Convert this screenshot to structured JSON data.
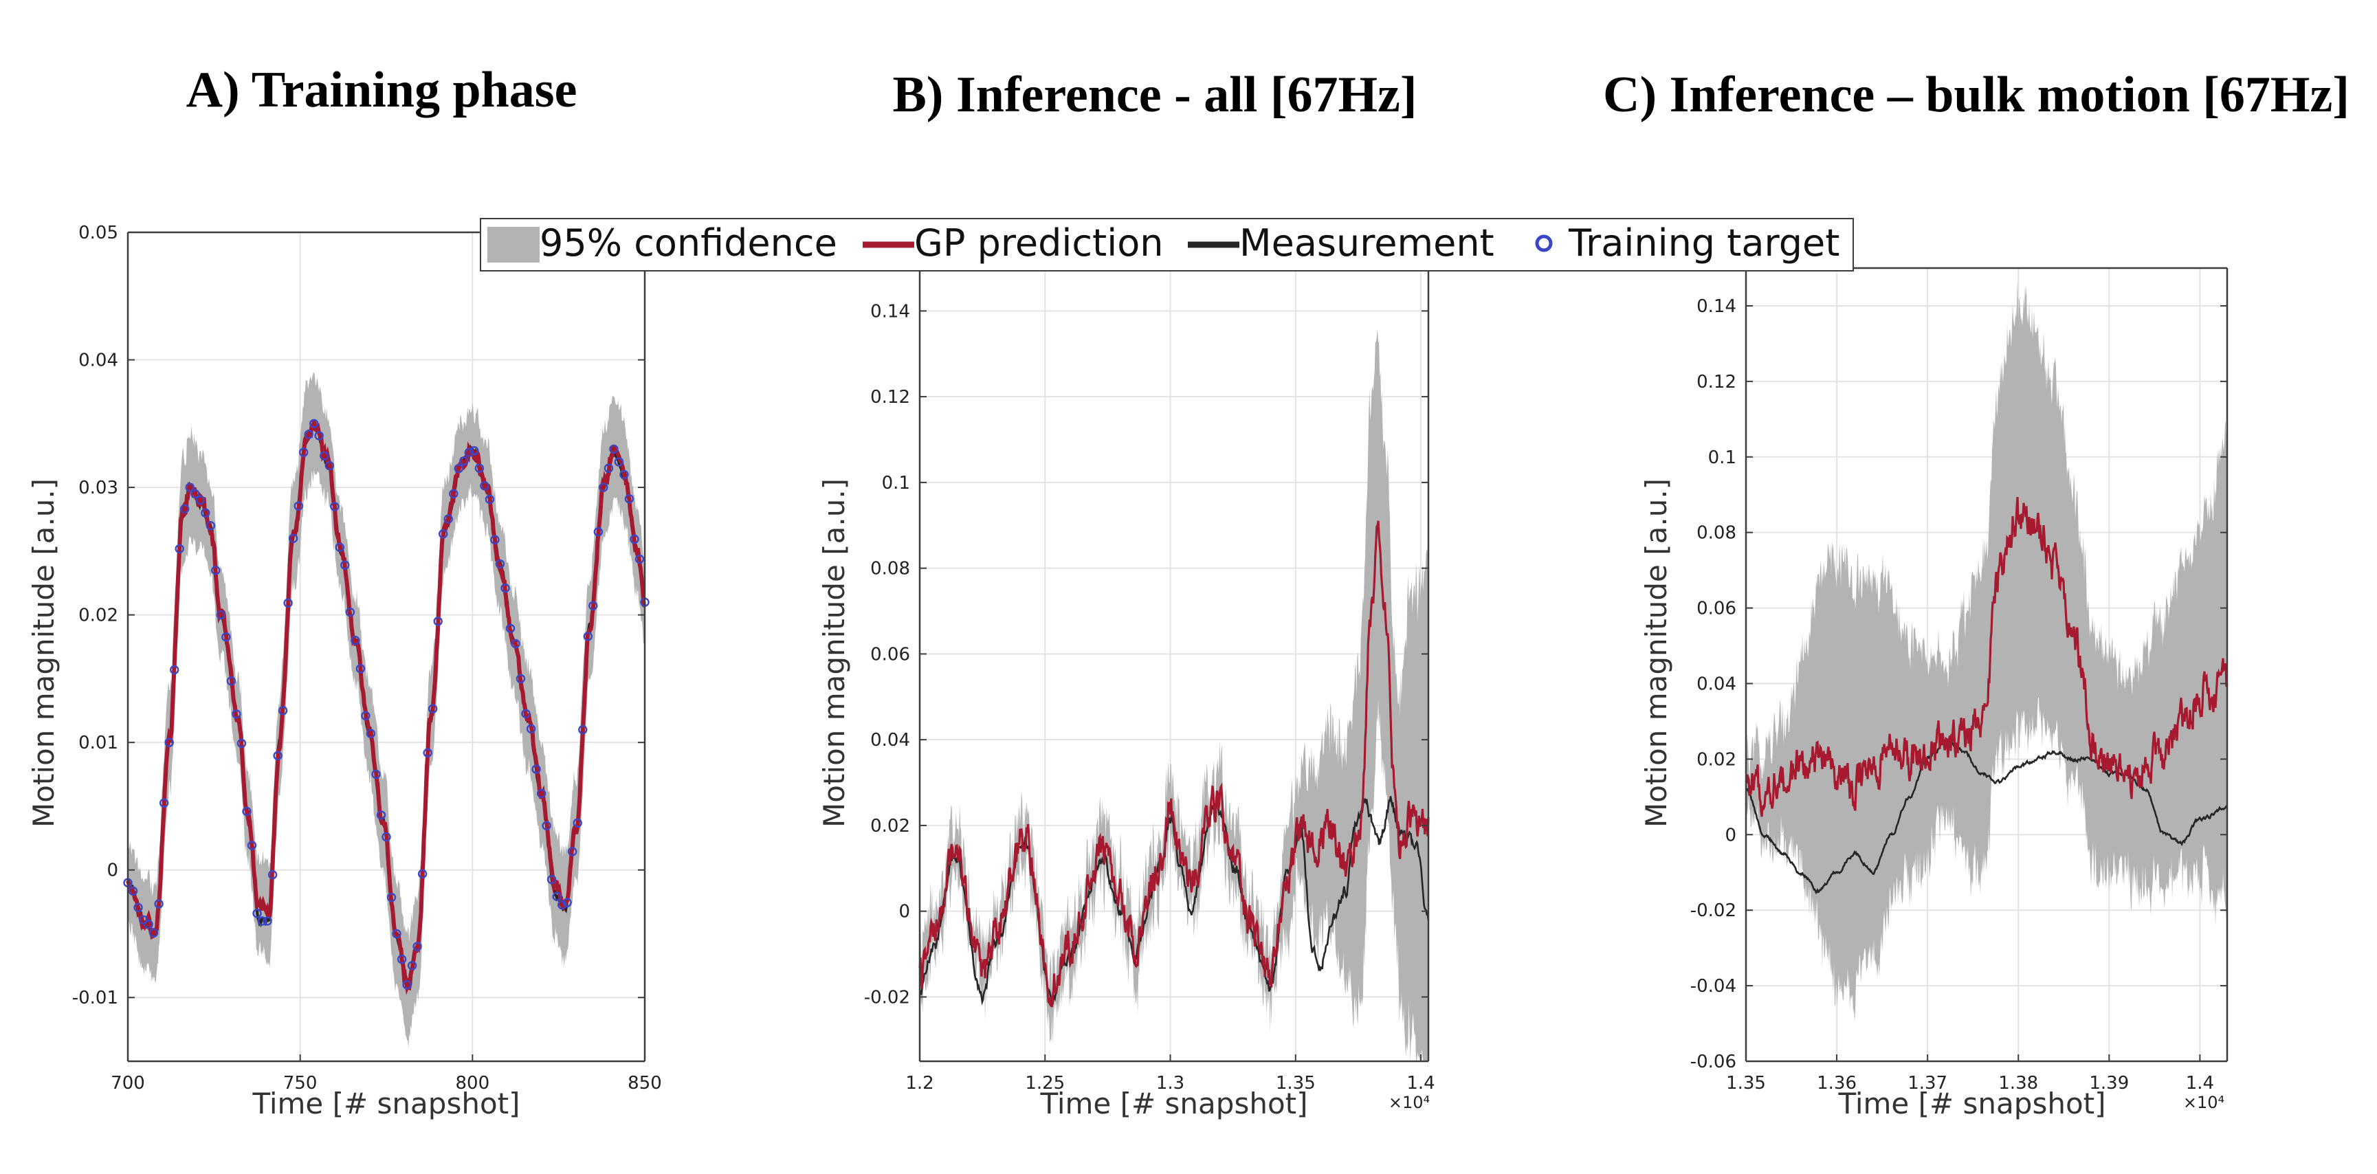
{
  "colors": {
    "confidence": "#b3b3b3",
    "prediction": "#a6192e",
    "measurement": "#262626",
    "target": "#3a45c8",
    "grid": "#e3e3e3",
    "axis": "#3c3c3c"
  },
  "legend": {
    "entries": [
      {
        "key": "confidence",
        "label": "95% confidence"
      },
      {
        "key": "prediction",
        "label": "GP prediction"
      },
      {
        "key": "measurement",
        "label": "Measurement"
      },
      {
        "key": "target",
        "label": "Training target"
      }
    ]
  },
  "chart_data": [
    {
      "id": "A",
      "type": "line",
      "title": "A) Training phase",
      "xlabel": "Time [# snapshot]",
      "ylabel": "Motion magnitude [a.u.]",
      "xlim": [
        700,
        850
      ],
      "ylim": [
        -0.015,
        0.05
      ],
      "xticks": [
        700,
        750,
        800,
        850
      ],
      "xtick_labels": [
        "700",
        "750",
        "800",
        "850"
      ],
      "yticks": [
        -0.01,
        0,
        0.01,
        0.02,
        0.03,
        0.04,
        0.05
      ],
      "ytick_labels": [
        "-0.01",
        "0",
        "0.01",
        "0.02",
        "0.03",
        "0.04",
        "0.05"
      ],
      "exponent_label": "",
      "anchors": {
        "prediction": [
          [
            700,
            -0.001
          ],
          [
            705,
            -0.004
          ],
          [
            708,
            -0.005
          ],
          [
            712,
            0.01
          ],
          [
            716,
            0.028
          ],
          [
            718,
            0.03
          ],
          [
            721,
            0.029
          ],
          [
            724,
            0.027
          ],
          [
            727,
            0.02
          ],
          [
            732,
            0.012
          ],
          [
            735,
            0.004
          ],
          [
            738,
            -0.003
          ],
          [
            741,
            -0.003
          ],
          [
            744,
            0.01
          ],
          [
            748,
            0.026
          ],
          [
            752,
            0.034
          ],
          [
            754,
            0.035
          ],
          [
            758,
            0.032
          ],
          [
            762,
            0.025
          ],
          [
            766,
            0.018
          ],
          [
            770,
            0.011
          ],
          [
            774,
            0.004
          ],
          [
            778,
            -0.005
          ],
          [
            781,
            -0.009
          ],
          [
            784,
            -0.006
          ],
          [
            788,
            0.012
          ],
          [
            792,
            0.027
          ],
          [
            797,
            0.032
          ],
          [
            800,
            0.033
          ],
          [
            804,
            0.03
          ],
          [
            808,
            0.024
          ],
          [
            812,
            0.018
          ],
          [
            816,
            0.012
          ],
          [
            820,
            0.006
          ],
          [
            824,
            -0.001
          ],
          [
            827,
            -0.003
          ],
          [
            830,
            0.003
          ],
          [
            834,
            0.019
          ],
          [
            838,
            0.03
          ],
          [
            841,
            0.033
          ],
          [
            844,
            0.031
          ],
          [
            848,
            0.025
          ],
          [
            850,
            0.021
          ]
        ],
        "measurement": [
          [
            700,
            -0.001
          ],
          [
            705,
            -0.004
          ],
          [
            708,
            -0.005
          ],
          [
            712,
            0.01
          ],
          [
            716,
            0.028
          ],
          [
            718,
            0.03
          ],
          [
            721,
            0.029
          ],
          [
            724,
            0.027
          ],
          [
            727,
            0.02
          ],
          [
            732,
            0.012
          ],
          [
            735,
            0.004
          ],
          [
            738,
            -0.004
          ],
          [
            741,
            -0.004
          ],
          [
            744,
            0.01
          ],
          [
            748,
            0.026
          ],
          [
            752,
            0.034
          ],
          [
            754,
            0.035
          ],
          [
            758,
            0.032
          ],
          [
            762,
            0.025
          ],
          [
            766,
            0.018
          ],
          [
            770,
            0.011
          ],
          [
            774,
            0.004
          ],
          [
            778,
            -0.005
          ],
          [
            781,
            -0.009
          ],
          [
            784,
            -0.006
          ],
          [
            788,
            0.012
          ],
          [
            792,
            0.027
          ],
          [
            797,
            0.032
          ],
          [
            800,
            0.033
          ],
          [
            804,
            0.03
          ],
          [
            808,
            0.024
          ],
          [
            812,
            0.018
          ],
          [
            816,
            0.012
          ],
          [
            820,
            0.006
          ],
          [
            824,
            -0.002
          ],
          [
            827,
            -0.003
          ],
          [
            830,
            0.003
          ],
          [
            834,
            0.019
          ],
          [
            838,
            0.03
          ],
          [
            841,
            0.033
          ],
          [
            844,
            0.031
          ],
          [
            848,
            0.025
          ],
          [
            850,
            0.021
          ]
        ],
        "conf_half": [
          [
            700,
            0.003
          ],
          [
            715,
            0.004
          ],
          [
            730,
            0.003
          ],
          [
            750,
            0.004
          ],
          [
            760,
            0.003
          ],
          [
            780,
            0.004
          ],
          [
            800,
            0.003
          ],
          [
            820,
            0.004
          ],
          [
            840,
            0.004
          ],
          [
            850,
            0.003
          ]
        ],
        "pred_noise": 0.0004,
        "meas_noise": 0.0002,
        "conf_noise": 0.0012,
        "targets": "measurement"
      }
    },
    {
      "id": "B",
      "type": "line",
      "title": "B) Inference - all [67Hz]",
      "xlabel": "Time [# snapshot]",
      "ylabel": "Motion magnitude [a.u.]",
      "xlim": [
        12000,
        14030
      ],
      "ylim": [
        -0.035,
        0.15
      ],
      "xticks": [
        12000,
        12500,
        13000,
        13500,
        14000
      ],
      "xtick_labels": [
        "1.2",
        "1.25",
        "1.3",
        "1.35",
        "1.4"
      ],
      "yticks": [
        -0.02,
        0,
        0.02,
        0.04,
        0.06,
        0.08,
        0.1,
        0.12,
        0.14
      ],
      "ytick_labels": [
        "-0.02",
        "0",
        "0.02",
        "0.04",
        "0.06",
        "0.08",
        "0.1",
        "0.12",
        "0.14"
      ],
      "exponent_label": "×10⁴",
      "anchors": {
        "prediction": [
          [
            12000,
            -0.015
          ],
          [
            12060,
            -0.005
          ],
          [
            12140,
            0.015
          ],
          [
            12250,
            -0.015
          ],
          [
            12300,
            -0.005
          ],
          [
            12420,
            0.017
          ],
          [
            12530,
            -0.018
          ],
          [
            12580,
            -0.01
          ],
          [
            12730,
            0.015
          ],
          [
            12800,
            0.002
          ],
          [
            12860,
            -0.008
          ],
          [
            12960,
            0.012
          ],
          [
            13000,
            0.025
          ],
          [
            13040,
            0.012
          ],
          [
            13080,
            0.005
          ],
          [
            13180,
            0.026
          ],
          [
            13260,
            0.01
          ],
          [
            13320,
            -0.003
          ],
          [
            13400,
            -0.015
          ],
          [
            13470,
            0.01
          ],
          [
            13520,
            0.02
          ],
          [
            13570,
            0.015
          ],
          [
            13640,
            0.02
          ],
          [
            13700,
            0.01
          ],
          [
            13760,
            0.02
          ],
          [
            13800,
            0.07
          ],
          [
            13830,
            0.09
          ],
          [
            13860,
            0.07
          ],
          [
            13890,
            0.03
          ],
          [
            13920,
            0.015
          ],
          [
            13960,
            0.022
          ],
          [
            14030,
            0.02
          ]
        ],
        "measurement": [
          [
            12000,
            -0.018
          ],
          [
            12060,
            -0.008
          ],
          [
            12140,
            0.013
          ],
          [
            12250,
            -0.02
          ],
          [
            12300,
            -0.008
          ],
          [
            12420,
            0.016
          ],
          [
            12530,
            -0.021
          ],
          [
            12580,
            -0.012
          ],
          [
            12730,
            0.012
          ],
          [
            12800,
            0.0
          ],
          [
            12860,
            -0.01
          ],
          [
            12960,
            0.01
          ],
          [
            13000,
            0.022
          ],
          [
            13040,
            0.01
          ],
          [
            13080,
            0.0
          ],
          [
            13180,
            0.026
          ],
          [
            13260,
            0.01
          ],
          [
            13320,
            -0.005
          ],
          [
            13400,
            -0.018
          ],
          [
            13470,
            0.01
          ],
          [
            13520,
            0.02
          ],
          [
            13570,
            -0.01
          ],
          [
            13600,
            -0.012
          ],
          [
            13650,
            -0.002
          ],
          [
            13700,
            0.005
          ],
          [
            13740,
            0.02
          ],
          [
            13780,
            0.025
          ],
          [
            13830,
            0.015
          ],
          [
            13880,
            0.025
          ],
          [
            13920,
            0.018
          ],
          [
            13980,
            0.015
          ],
          [
            14030,
            -0.002
          ]
        ],
        "conf_half": [
          [
            12000,
            0.004
          ],
          [
            13400,
            0.006
          ],
          [
            13500,
            0.01
          ],
          [
            13600,
            0.02
          ],
          [
            13700,
            0.025
          ],
          [
            13760,
            0.04
          ],
          [
            13800,
            0.05
          ],
          [
            13850,
            0.04
          ],
          [
            13900,
            0.03
          ],
          [
            13960,
            0.05
          ],
          [
            14030,
            0.06
          ]
        ],
        "pred_noise": 0.0035,
        "meas_noise": 0.0012,
        "conf_noise": 0.01,
        "targets": "none"
      }
    },
    {
      "id": "C",
      "type": "line",
      "title": "C) Inference – bulk motion [67Hz]",
      "xlabel": "Time [# snapshot]",
      "ylabel": "Motion magnitude [a.u.]",
      "xlim": [
        13500,
        14030
      ],
      "ylim": [
        -0.06,
        0.15
      ],
      "xticks": [
        13500,
        13600,
        13700,
        13800,
        13900,
        14000
      ],
      "xtick_labels": [
        "1.35",
        "1.36",
        "1.37",
        "1.38",
        "1.39",
        "1.4"
      ],
      "yticks": [
        -0.06,
        -0.04,
        -0.02,
        0,
        0.02,
        0.04,
        0.06,
        0.08,
        0.1,
        0.12,
        0.14
      ],
      "ytick_labels": [
        "-0.06",
        "-0.04",
        "-0.02",
        "0",
        "0.02",
        "0.04",
        "0.06",
        "0.08",
        "0.1",
        "0.12",
        "0.14"
      ],
      "exponent_label": "×10⁴",
      "anchors": {
        "prediction": [
          [
            13500,
            0.012
          ],
          [
            13520,
            0.012
          ],
          [
            13540,
            0.015
          ],
          [
            13560,
            0.018
          ],
          [
            13580,
            0.02
          ],
          [
            13600,
            0.016
          ],
          [
            13620,
            0.012
          ],
          [
            13640,
            0.018
          ],
          [
            13660,
            0.022
          ],
          [
            13680,
            0.02
          ],
          [
            13700,
            0.02
          ],
          [
            13720,
            0.025
          ],
          [
            13740,
            0.025
          ],
          [
            13760,
            0.03
          ],
          [
            13780,
            0.07
          ],
          [
            13800,
            0.085
          ],
          [
            13820,
            0.08
          ],
          [
            13840,
            0.07
          ],
          [
            13860,
            0.055
          ],
          [
            13870,
            0.045
          ],
          [
            13880,
            0.025
          ],
          [
            13900,
            0.02
          ],
          [
            13920,
            0.015
          ],
          [
            13940,
            0.02
          ],
          [
            13960,
            0.02
          ],
          [
            13980,
            0.03
          ],
          [
            14000,
            0.038
          ],
          [
            14030,
            0.04
          ]
        ],
        "measurement": [
          [
            13500,
            0.012
          ],
          [
            13520,
            0.0
          ],
          [
            13540,
            -0.005
          ],
          [
            13560,
            -0.01
          ],
          [
            13580,
            -0.015
          ],
          [
            13600,
            -0.01
          ],
          [
            13620,
            -0.005
          ],
          [
            13640,
            -0.01
          ],
          [
            13660,
            0.0
          ],
          [
            13680,
            0.01
          ],
          [
            13700,
            0.02
          ],
          [
            13720,
            0.025
          ],
          [
            13740,
            0.022
          ],
          [
            13760,
            0.016
          ],
          [
            13780,
            0.014
          ],
          [
            13800,
            0.018
          ],
          [
            13820,
            0.02
          ],
          [
            13840,
            0.022
          ],
          [
            13860,
            0.02
          ],
          [
            13880,
            0.02
          ],
          [
            13900,
            0.016
          ],
          [
            13920,
            0.016
          ],
          [
            13940,
            0.012
          ],
          [
            13960,
            0.0
          ],
          [
            13980,
            -0.002
          ],
          [
            14000,
            0.004
          ],
          [
            14030,
            0.007
          ]
        ],
        "conf_half": [
          [
            13500,
            0.006
          ],
          [
            13540,
            0.015
          ],
          [
            13600,
            0.055
          ],
          [
            13640,
            0.05
          ],
          [
            13680,
            0.03
          ],
          [
            13720,
            0.02
          ],
          [
            13760,
            0.04
          ],
          [
            13800,
            0.055
          ],
          [
            13840,
            0.045
          ],
          [
            13880,
            0.03
          ],
          [
            13920,
            0.025
          ],
          [
            13960,
            0.035
          ],
          [
            14000,
            0.045
          ],
          [
            14030,
            0.06
          ]
        ],
        "pred_noise": 0.004,
        "meas_noise": 0.0004,
        "conf_noise": 0.008,
        "targets": "none"
      }
    }
  ]
}
